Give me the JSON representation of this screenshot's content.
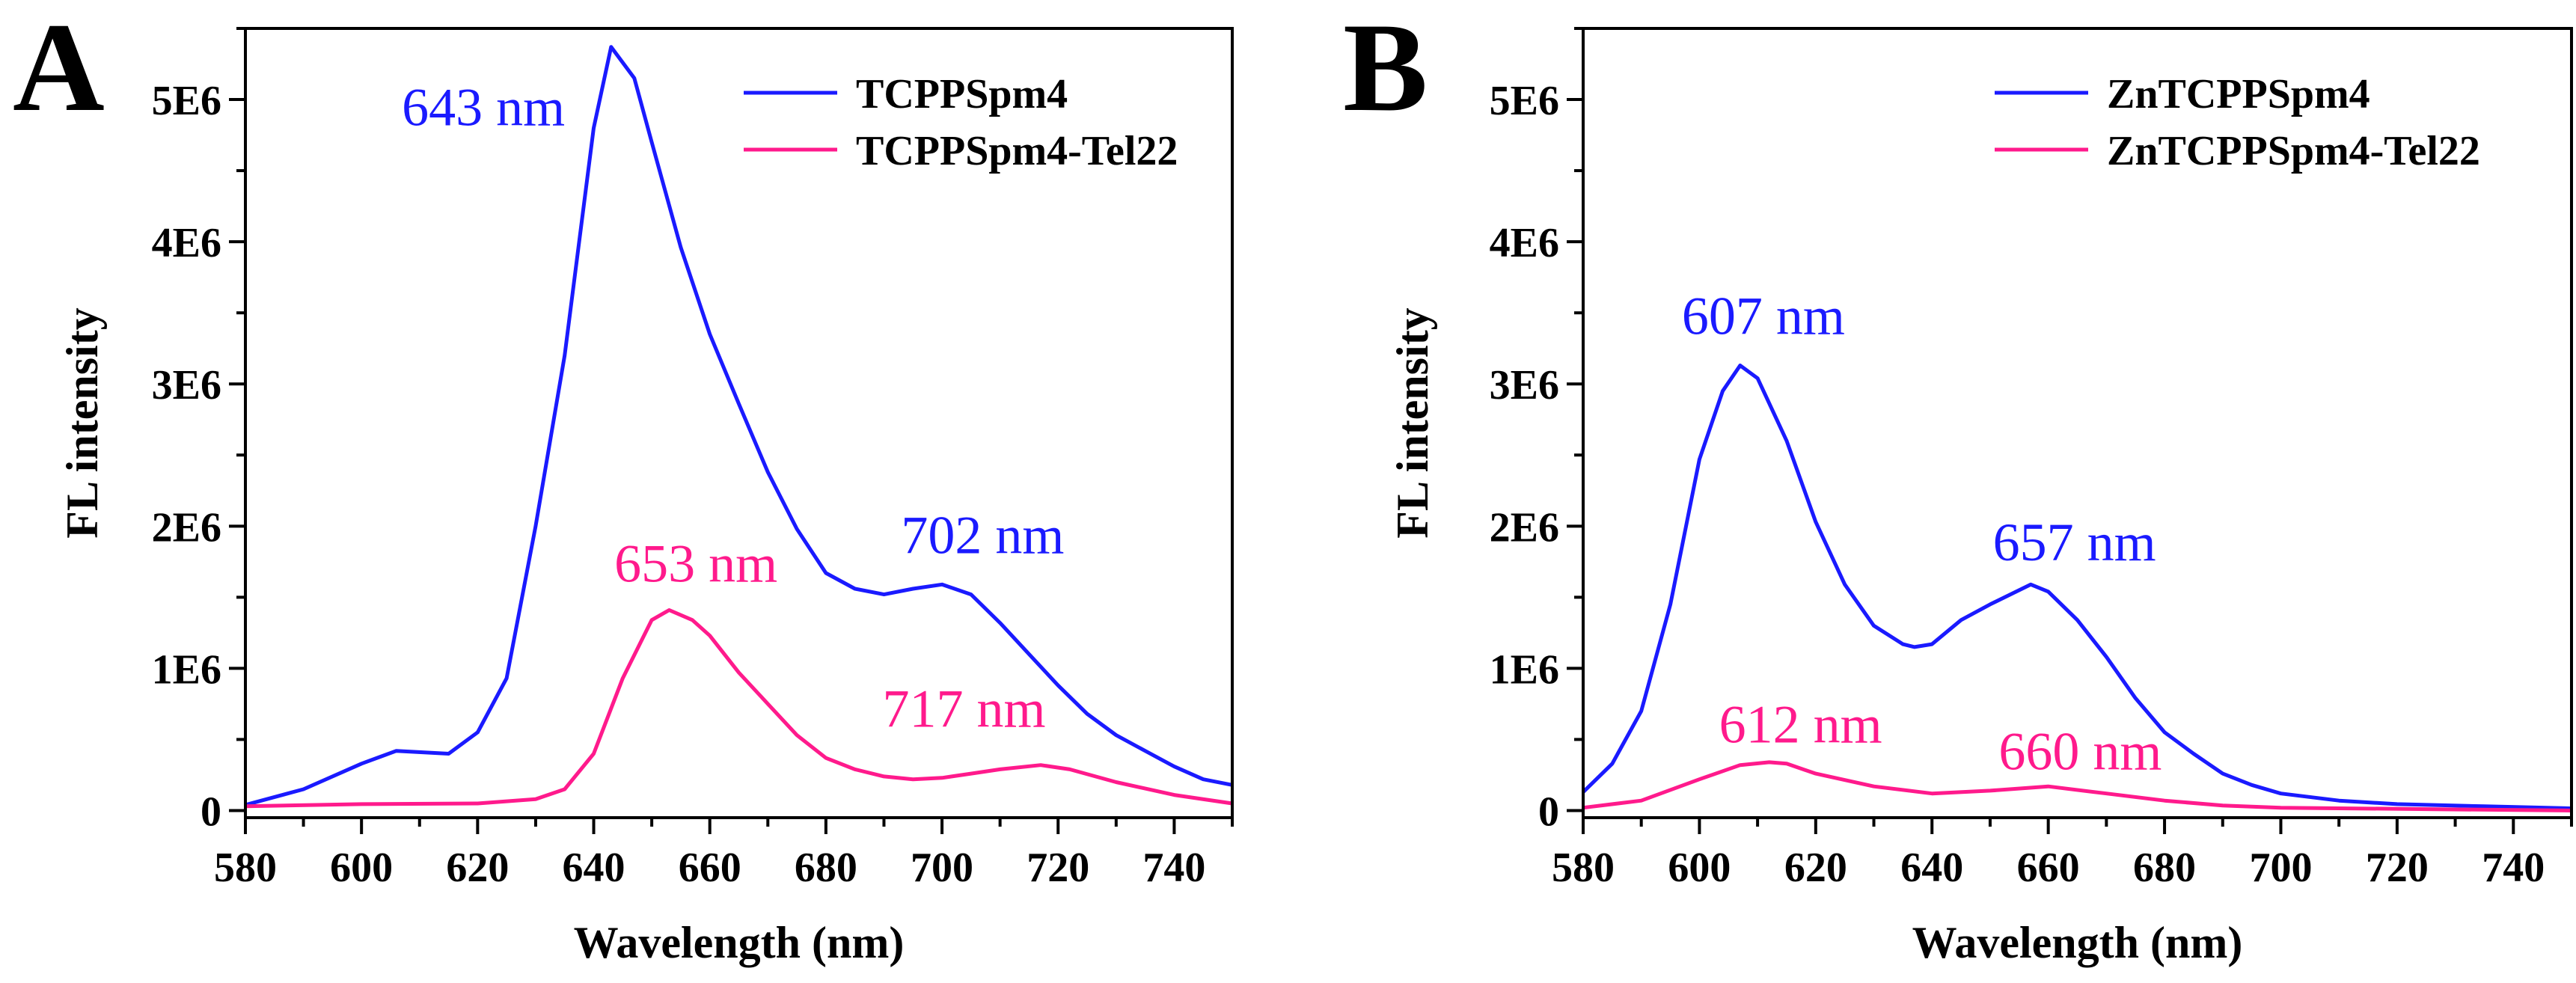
{
  "chart_data": [
    {
      "panel_label": "A",
      "type": "line",
      "xlabel": "Wavelength (nm)",
      "ylabel": "FL intensity",
      "xlim": [
        580,
        750
      ],
      "ylim": [
        -50000,
        5500000
      ],
      "xticks": [
        580,
        600,
        620,
        640,
        660,
        680,
        700,
        720,
        740
      ],
      "yticks": [
        0,
        1000000,
        2000000,
        3000000,
        4000000,
        5000000
      ],
      "ytick_labels": [
        "0",
        "1E6",
        "2E6",
        "3E6",
        "4E6",
        "5E6"
      ],
      "legend_position": "top-right",
      "series": [
        {
          "name": "TCPPSpm4",
          "color": "#1a1aff",
          "x": [
            580,
            590,
            600,
            606,
            615,
            620,
            625,
            630,
            635,
            640,
            643,
            647,
            650,
            655,
            660,
            665,
            670,
            675,
            680,
            685,
            690,
            695,
            700,
            705,
            710,
            715,
            720,
            725,
            730,
            735,
            740,
            745,
            750
          ],
          "y": [
            40000,
            150000,
            330000,
            420000,
            400000,
            550000,
            930000,
            2000000,
            3200000,
            4800000,
            5370000,
            5150000,
            4700000,
            3960000,
            3350000,
            2860000,
            2380000,
            1980000,
            1670000,
            1560000,
            1520000,
            1560000,
            1590000,
            1520000,
            1320000,
            1100000,
            880000,
            680000,
            530000,
            420000,
            310000,
            220000,
            180000
          ]
        },
        {
          "name": "TCPPSpm4-Tel22",
          "color": "#ff1a8c",
          "x": [
            580,
            600,
            620,
            630,
            635,
            640,
            645,
            650,
            653,
            657,
            660,
            665,
            670,
            675,
            680,
            685,
            690,
            695,
            700,
            705,
            710,
            717,
            722,
            730,
            740,
            750
          ],
          "y": [
            30000,
            45000,
            50000,
            80000,
            150000,
            400000,
            930000,
            1340000,
            1410000,
            1340000,
            1230000,
            970000,
            750000,
            530000,
            370000,
            290000,
            240000,
            220000,
            230000,
            260000,
            290000,
            320000,
            290000,
            200000,
            110000,
            50000
          ]
        }
      ],
      "annotations": [
        {
          "text": "643 nm",
          "color": "#1a1aff",
          "x": 621,
          "y": 4820000
        },
        {
          "text": "702 nm",
          "color": "#1a1aff",
          "x": 707,
          "y": 1810000
        },
        {
          "text": "653 nm",
          "color": "#ff1a8c",
          "x": 657.6,
          "y": 1610000
        },
        {
          "text": "717 nm",
          "color": "#ff1a8c",
          "x": 703.8,
          "y": 590000
        }
      ]
    },
    {
      "panel_label": "B",
      "type": "line",
      "xlabel": "Wavelength (nm)",
      "ylabel": "FL intensity",
      "xlim": [
        580,
        750
      ],
      "ylim": [
        -50000,
        5500000
      ],
      "xticks": [
        580,
        600,
        620,
        640,
        660,
        680,
        700,
        720,
        740
      ],
      "yticks": [
        0,
        1000000,
        2000000,
        3000000,
        4000000,
        5000000
      ],
      "ytick_labels": [
        "0",
        "1E6",
        "2E6",
        "3E6",
        "4E6",
        "5E6"
      ],
      "legend_position": "top-right",
      "series": [
        {
          "name": "ZnTCPPSpm4",
          "color": "#1a1aff",
          "x": [
            580,
            585,
            590,
            595,
            600,
            604,
            607,
            610,
            615,
            620,
            625,
            630,
            635,
            637,
            640,
            645,
            650,
            657,
            660,
            665,
            670,
            675,
            680,
            685,
            690,
            695,
            700,
            710,
            720,
            735,
            750
          ],
          "y": [
            130000,
            330000,
            700000,
            1450000,
            2470000,
            2950000,
            3130000,
            3040000,
            2600000,
            2030000,
            1590000,
            1300000,
            1170000,
            1150000,
            1170000,
            1340000,
            1450000,
            1590000,
            1540000,
            1340000,
            1080000,
            790000,
            550000,
            400000,
            260000,
            180000,
            120000,
            70000,
            45000,
            30000,
            15000
          ]
        },
        {
          "name": "ZnTCPPSpm4-Tel22",
          "color": "#ff1a8c",
          "x": [
            580,
            590,
            600,
            607,
            612,
            615,
            620,
            630,
            640,
            650,
            660,
            670,
            680,
            690,
            700,
            750
          ],
          "y": [
            20000,
            70000,
            220000,
            320000,
            340000,
            330000,
            260000,
            170000,
            120000,
            140000,
            170000,
            120000,
            70000,
            35000,
            20000,
            0
          ]
        }
      ],
      "annotations": [
        {
          "text": "607 nm",
          "color": "#1a1aff",
          "x": 611,
          "y": 3350000
        },
        {
          "text": "657 nm",
          "color": "#1a1aff",
          "x": 664.5,
          "y": 1760000
        },
        {
          "text": "612 nm",
          "color": "#ff1a8c",
          "x": 617.4,
          "y": 480000
        },
        {
          "text": "660 nm",
          "color": "#ff1a8c",
          "x": 665.5,
          "y": 290000
        }
      ]
    }
  ]
}
